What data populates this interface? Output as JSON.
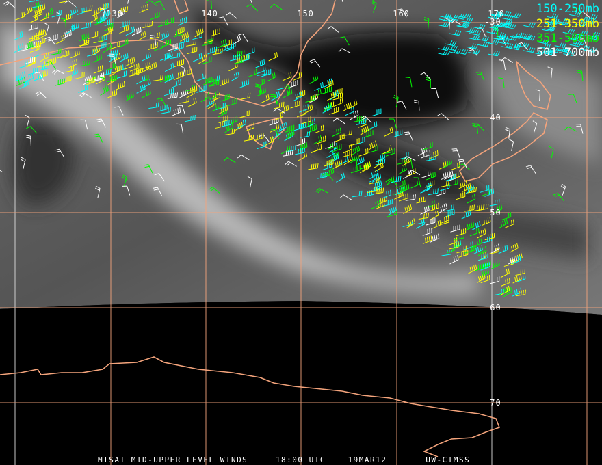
{
  "caption": {
    "product": "MTSAT MID-UPPER LEVEL WINDS",
    "time": "18:00 UTC",
    "date": "19MAR12",
    "source": "UW-CIMSS"
  },
  "legend": [
    {
      "label": "150-250mb",
      "color": "#00ffff"
    },
    {
      "label": "251-350mb",
      "color": "#ffff00"
    },
    {
      "label": "351-500mb",
      "color": "#00ff00"
    },
    {
      "label": "501-700mb",
      "color": "#ffffff"
    }
  ],
  "longitude_labels": [
    "-130",
    "-140",
    "-150",
    "-160",
    "-170"
  ],
  "latitude_labels": [
    "-30",
    "-40",
    "-50",
    "-60",
    "-70"
  ],
  "colors": {
    "coastline": "#f4a47c",
    "grid": "#f4a47c",
    "space": "#000000"
  }
}
